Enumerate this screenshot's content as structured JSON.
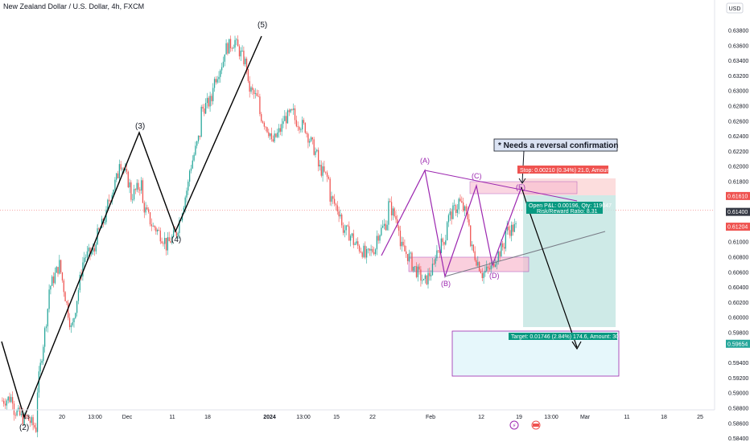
{
  "header": {
    "title": "New Zealand Dollar / U.S. Dollar, 4h, FXCM",
    "currency": "USD"
  },
  "colors": {
    "up": "#26a69a",
    "down": "#ef5350",
    "pattern": "#9c27b0",
    "wave": "#000000",
    "stop_zone": "#ffcdd2",
    "target_zone": "#b2dfdb"
  },
  "chart_data": {
    "type": "candlestick",
    "title": "New Zealand Dollar / U.S. Dollar, 4h, FXCM",
    "y_ticks": [
      "0.63800",
      "0.63600",
      "0.63400",
      "0.63200",
      "0.63000",
      "0.62800",
      "0.62600",
      "0.62400",
      "0.62200",
      "0.62000",
      "0.61800",
      "0.61400",
      "0.61000",
      "0.60800",
      "0.60600",
      "0.60400",
      "0.60200",
      "0.60000",
      "0.59800",
      "0.59400",
      "0.59200",
      "0.59000",
      "0.58800",
      "0.58600",
      "0.58400"
    ],
    "x_ticks": [
      "13",
      "20",
      "13:00",
      "Dec",
      "11",
      "18",
      "2024",
      "13:00",
      "15",
      "22",
      "Feb",
      "12",
      "19",
      "13:00",
      "Mar",
      "11",
      "18",
      "25"
    ],
    "ylim": [
      0.5835,
      0.6385
    ],
    "price_labels": [
      {
        "value": 0.6161,
        "text": "0.61610",
        "color": "#ef5350"
      },
      {
        "value": 0.614,
        "text": "0.61400",
        "color": "#363a45"
      },
      {
        "value": 0.61204,
        "text": "0.61204",
        "color": "#ef5350"
      },
      {
        "value": 0.59654,
        "text": "0.59654",
        "color": "#26a69a"
      }
    ],
    "wave_labels": [
      "(2)",
      "(3)",
      "(4)",
      "(5)"
    ],
    "pattern_labels": [
      "(A)",
      "(B)",
      "(C)",
      "(D)",
      "(E)"
    ],
    "annotation": "* Needs a reversal confirmation",
    "position": {
      "entry": 0.614,
      "stop": 0.6161,
      "target": 0.59654,
      "stop_text": "Stop: 0.00210 (0.34%) 21.0, Amount: 750",
      "open_text": "Open P&L: 0.00196, Qty: 119047",
      "rr_text": "Risk/Reward Ratio: 8.31",
      "target_text": "Target: 0.01746 (2.84%) 174.6, Amount: 3078.57"
    },
    "path_points": [
      [
        0.589,
        0.5895
      ],
      [
        0.5878,
        0.5862
      ],
      [
        0.5869,
        0.5851
      ],
      [
        0.5905,
        0.6028
      ],
      [
        0.6038,
        0.6075
      ],
      [
        0.606,
        0.5975
      ],
      [
        0.599,
        0.6085
      ],
      [
        0.608,
        0.609
      ],
      [
        0.6105,
        0.614
      ],
      [
        0.615,
        0.6195
      ],
      [
        0.621,
        0.617
      ],
      [
        0.616,
        0.618
      ],
      [
        0.615,
        0.6115
      ],
      [
        0.612,
        0.61
      ],
      [
        0.6095,
        0.6115
      ],
      [
        0.612,
        0.6185
      ],
      [
        0.6195,
        0.625
      ],
      [
        0.6275,
        0.629
      ],
      [
        0.631,
        0.6345
      ],
      [
        0.6355,
        0.6368
      ],
      [
        0.636,
        0.633
      ],
      [
        0.6305,
        0.6285
      ],
      [
        0.627,
        0.624
      ],
      [
        0.623,
        0.6255
      ],
      [
        0.6262,
        0.6272
      ],
      [
        0.6262,
        0.625
      ],
      [
        0.6245,
        0.621
      ],
      [
        0.62,
        0.618
      ],
      [
        0.616,
        0.6135
      ],
      [
        0.612,
        0.6105
      ],
      [
        0.61,
        0.6085
      ],
      [
        0.608,
        0.6095
      ],
      [
        0.6108,
        0.613
      ],
      [
        0.615,
        0.612
      ],
      [
        0.6095,
        0.6075
      ],
      [
        0.607,
        0.6048
      ],
      [
        0.6045,
        0.607
      ],
      [
        0.6085,
        0.611
      ],
      [
        0.613,
        0.615
      ],
      [
        0.6155,
        0.6125
      ],
      [
        0.6095,
        0.606
      ],
      [
        0.6058,
        0.6068
      ],
      [
        0.6075,
        0.61
      ],
      [
        0.6115,
        0.612
      ]
    ]
  }
}
